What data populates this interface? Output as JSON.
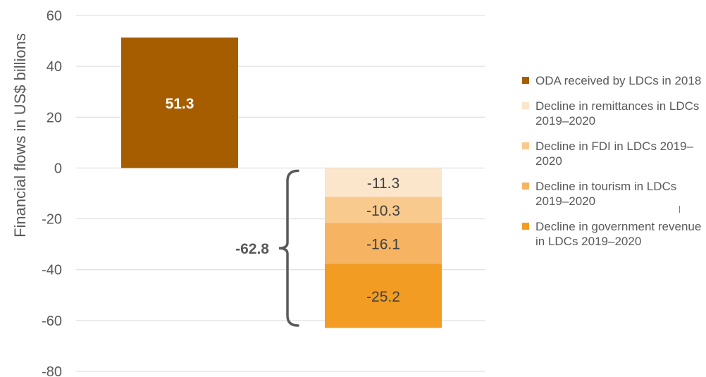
{
  "chart_data": {
    "type": "bar",
    "ylabel": "Financial flows in US$ billions",
    "ylim": [
      -80,
      60
    ],
    "yticks": [
      "60",
      "40",
      "20",
      "0",
      "-20",
      "-40",
      "-60",
      "-80"
    ],
    "ytick_values": [
      60,
      40,
      20,
      0,
      -20,
      -40,
      -60,
      -80
    ],
    "grid": true,
    "legend_position": "right",
    "series": [
      {
        "name": "ODA received by LDCs in 2018",
        "value": 51.3,
        "label": "51.3",
        "color": "#a65d00",
        "bar": "ODA"
      },
      {
        "name": "Decline in remittances in LDCs 2019–2020",
        "value": -11.3,
        "label": "-11.3",
        "color": "#fbe5cb",
        "bar": "Declines"
      },
      {
        "name": "Decline in FDI in LDCs 2019–2020",
        "value": -10.3,
        "label": "-10.3",
        "color": "#f9ca8d",
        "bar": "Declines"
      },
      {
        "name": "Decline in tourism in LDCs 2019–2020",
        "value": -16.1,
        "label": "-16.1",
        "color": "#f6b462",
        "bar": "Declines"
      },
      {
        "name": "Decline in government revenue in LDCs 2019–2020",
        "value": -25.2,
        "label": "-25.2",
        "color": "#f29c23",
        "bar": "Declines"
      }
    ],
    "annotations": [
      {
        "text": "-62.8",
        "value": -62.8,
        "type": "brace"
      }
    ]
  }
}
